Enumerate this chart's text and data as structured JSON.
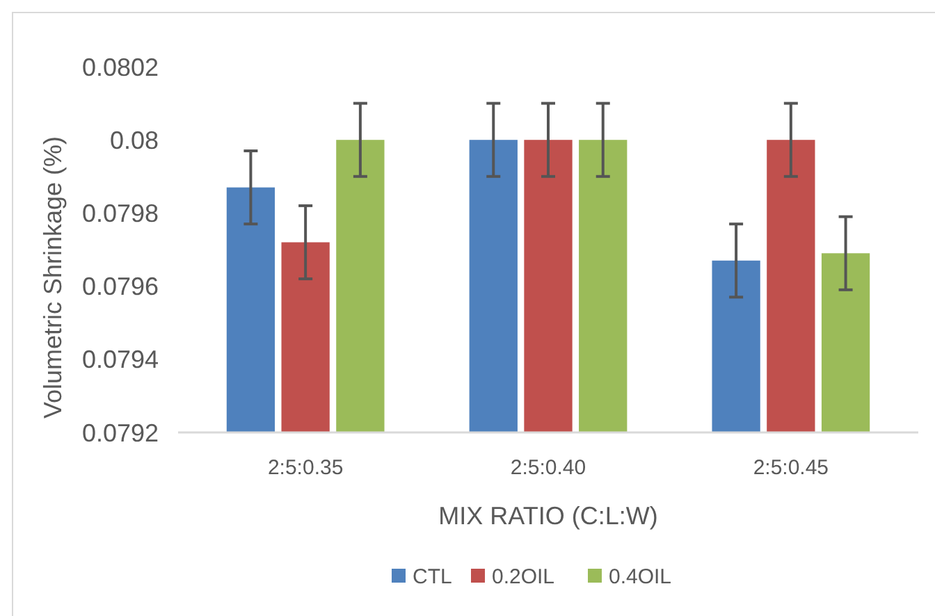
{
  "chart_data": {
    "type": "bar",
    "xlabel": "MIX RATIO (C:L:W)",
    "ylabel": "Volumetric Shrinkage (%)",
    "categories": [
      "2:5:0.35",
      "2:5:0.40",
      "2:5:0.45"
    ],
    "series": [
      {
        "name": "CTL",
        "color": "#4f81bd",
        "values": [
          0.07987,
          0.08,
          0.07967
        ],
        "errors": [
          0.0001,
          0.0001,
          0.0001
        ]
      },
      {
        "name": "0.2OIL",
        "color": "#c0504d",
        "values": [
          0.07972,
          0.08,
          0.08
        ],
        "errors": [
          0.0001,
          0.0001,
          0.0001
        ]
      },
      {
        "name": "0.4OIL",
        "color": "#9bbb59",
        "values": [
          0.08,
          0.08,
          0.07969
        ],
        "errors": [
          0.0001,
          0.0001,
          0.0001
        ]
      }
    ],
    "ylim": [
      0.0792,
      0.0802
    ],
    "yticks": [
      0.0792,
      0.0794,
      0.0796,
      0.0798,
      0.08,
      0.0802
    ],
    "grid": false,
    "legend": "bottom"
  }
}
